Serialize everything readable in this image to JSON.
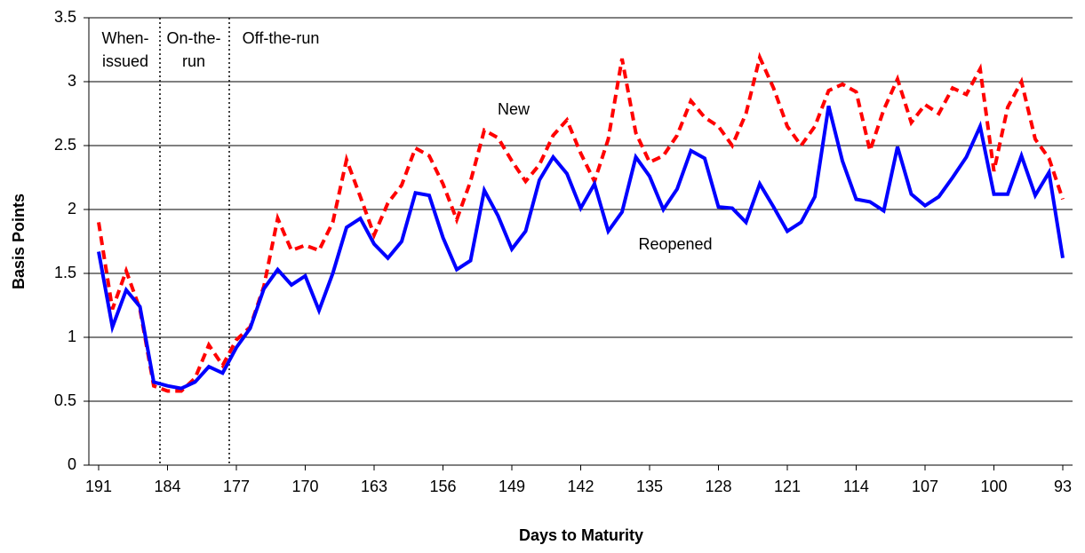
{
  "chart_data": {
    "type": "line",
    "xlabel": "Days to Maturity",
    "ylabel": "Basis Points",
    "categories": [
      "191",
      null,
      null,
      null,
      null,
      "184",
      null,
      null,
      null,
      null,
      "177",
      null,
      null,
      null,
      null,
      "170",
      null,
      null,
      null,
      null,
      "163",
      null,
      null,
      null,
      null,
      "156",
      null,
      null,
      null,
      null,
      "149",
      null,
      null,
      null,
      null,
      "142",
      null,
      null,
      null,
      null,
      "135",
      null,
      null,
      null,
      null,
      "128",
      null,
      null,
      null,
      null,
      "121",
      null,
      null,
      null,
      null,
      "114",
      null,
      null,
      null,
      null,
      "107",
      null,
      null,
      null,
      null,
      "100",
      null,
      null,
      null,
      null,
      "93"
    ],
    "series": [
      {
        "name": "New",
        "color": "#ff0000",
        "dashed": true,
        "values": [
          1.9,
          1.22,
          1.52,
          1.22,
          0.62,
          0.58,
          0.58,
          0.68,
          0.94,
          0.78,
          0.98,
          1.08,
          1.4,
          1.93,
          1.68,
          1.72,
          1.68,
          1.9,
          2.39,
          2.1,
          1.8,
          2.05,
          2.19,
          2.48,
          2.42,
          2.2,
          1.92,
          2.22,
          2.62,
          2.56,
          2.38,
          2.22,
          2.35,
          2.58,
          2.7,
          2.44,
          2.22,
          2.55,
          3.18,
          2.6,
          2.37,
          2.42,
          2.58,
          2.85,
          2.72,
          2.65,
          2.5,
          2.75,
          3.19,
          2.95,
          2.65,
          2.5,
          2.65,
          2.93,
          2.98,
          2.92,
          2.46,
          2.78,
          3.02,
          2.68,
          2.82,
          2.75,
          2.95,
          2.9,
          3.1,
          2.3,
          2.8,
          3.0,
          2.55,
          2.4,
          2.08
        ]
      },
      {
        "name": "Reopened",
        "color": "#0000ff",
        "dashed": false,
        "values": [
          1.67,
          1.08,
          1.37,
          1.24,
          0.65,
          0.62,
          0.6,
          0.65,
          0.77,
          0.72,
          0.92,
          1.07,
          1.38,
          1.53,
          1.41,
          1.48,
          1.21,
          1.5,
          1.86,
          1.93,
          1.73,
          1.62,
          1.75,
          2.13,
          2.11,
          1.78,
          1.53,
          1.6,
          2.15,
          1.95,
          1.69,
          1.83,
          2.23,
          2.41,
          2.28,
          2.01,
          2.2,
          1.83,
          1.98,
          2.41,
          2.26,
          2.0,
          2.16,
          2.46,
          2.4,
          2.02,
          2.01,
          1.9,
          2.2,
          2.02,
          1.83,
          1.9,
          2.1,
          2.81,
          2.38,
          2.08,
          2.06,
          1.99,
          2.49,
          2.12,
          2.03,
          2.1,
          2.25,
          2.41,
          2.65,
          2.12,
          2.12,
          2.42,
          2.11,
          2.29,
          1.62
        ]
      }
    ],
    "ylim": [
      0,
      3.5
    ],
    "yticks": [
      0,
      0.5,
      1,
      1.5,
      2,
      2.5,
      3,
      3.5
    ],
    "grid": true,
    "annotations": [
      [
        "When-",
        "issued"
      ],
      [
        "On-the-",
        "run"
      ],
      [
        "Off-the-run"
      ]
    ]
  }
}
